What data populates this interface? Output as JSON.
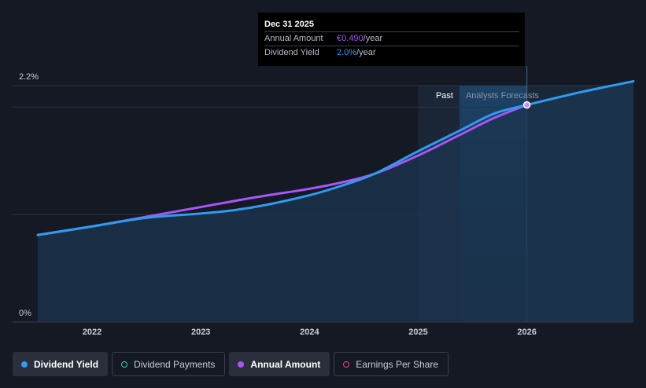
{
  "tooltip": {
    "date": "Dec 31 2025",
    "rows": [
      {
        "label": "Annual Amount",
        "value": "€0.490",
        "unit": "/year"
      },
      {
        "label": "Dividend Yield",
        "value": "2.0%",
        "unit": "/year"
      }
    ]
  },
  "legend": [
    {
      "label": "Dividend Yield",
      "color": "#2f9bf0",
      "style": "filled"
    },
    {
      "label": "Dividend Payments",
      "color": "#2dd4bf",
      "style": "outlined"
    },
    {
      "label": "Annual Amount",
      "color": "#a855f7",
      "style": "filled"
    },
    {
      "label": "Earnings Per Share",
      "color": "#e04880",
      "style": "outlined"
    }
  ],
  "chart_data": {
    "type": "line",
    "y_tick_labels": [
      "2.2%",
      "0%"
    ],
    "x_tick_labels": [
      "2022",
      "2023",
      "2024",
      "2025",
      "2026"
    ],
    "past_label": "Past",
    "forecast_label": "Analysts Forecasts",
    "ylim": [
      0,
      2.2
    ],
    "xlim": [
      2021.5,
      2026.98
    ],
    "past_forecast_boundary": 2025.38,
    "tooltip_x": 2026.0,
    "grid": true,
    "colors": {
      "yield": "#2f9bf0",
      "amount": "#a855f7"
    },
    "series": [
      {
        "name": "Dividend Yield",
        "x": [
          2021.5,
          2022.0,
          2022.5,
          2023.0,
          2023.3,
          2023.6,
          2024.0,
          2024.3,
          2024.6,
          2025.0,
          2025.38,
          2025.7,
          2026.0,
          2026.5,
          2026.98
        ],
        "values": [
          0.81,
          0.89,
          0.97,
          1.01,
          1.04,
          1.09,
          1.18,
          1.27,
          1.38,
          1.59,
          1.78,
          1.94,
          2.02,
          2.14,
          2.24
        ]
      },
      {
        "name": "Annual Amount",
        "x": [
          2021.5,
          2022.0,
          2022.5,
          2023.0,
          2023.5,
          2024.0,
          2024.3,
          2024.6,
          2025.0,
          2025.38,
          2025.7,
          2026.0
        ],
        "values": [
          0.81,
          0.89,
          0.98,
          1.07,
          1.16,
          1.24,
          1.3,
          1.38,
          1.55,
          1.74,
          1.9,
          2.02
        ]
      }
    ]
  }
}
